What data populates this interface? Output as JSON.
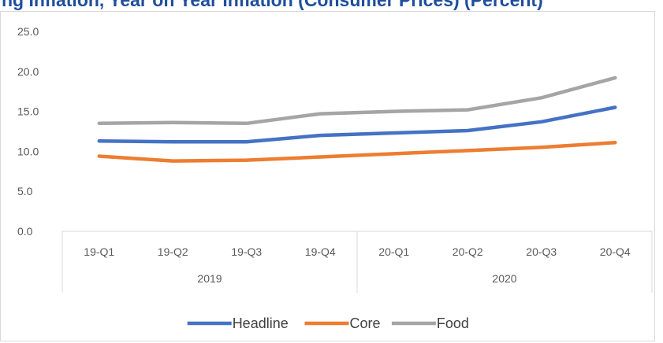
{
  "title": "ng Inflation, Year on Year Inflation (Consumer Prices) (Percent)",
  "chart_data": {
    "type": "line",
    "title": "ng Inflation, Year on Year Inflation (Consumer Prices) (Percent)",
    "categories": [
      "19-Q1",
      "19-Q2",
      "19-Q3",
      "19-Q4",
      "20-Q1",
      "20-Q2",
      "20-Q3",
      "20-Q4"
    ],
    "groups": [
      {
        "label": "2019",
        "span": 4
      },
      {
        "label": "2020",
        "span": 4
      }
    ],
    "y_ticks": [
      "0.0",
      "5.0",
      "10.0",
      "15.0",
      "20.0",
      "25.0"
    ],
    "ylim": [
      0,
      25
    ],
    "grid": false,
    "legend": "bottom",
    "series": [
      {
        "name": "Headline",
        "color": "#4472c4",
        "values": [
          11.3,
          11.2,
          11.2,
          12.0,
          12.3,
          12.6,
          13.7,
          15.5
        ]
      },
      {
        "name": "Core",
        "color": "#ed7d31",
        "values": [
          9.4,
          8.8,
          8.9,
          9.3,
          9.7,
          10.1,
          10.5,
          11.1
        ]
      },
      {
        "name": "Food",
        "color": "#a5a5a5",
        "values": [
          13.5,
          13.6,
          13.5,
          14.7,
          15.0,
          15.2,
          16.7,
          19.2
        ]
      }
    ]
  }
}
